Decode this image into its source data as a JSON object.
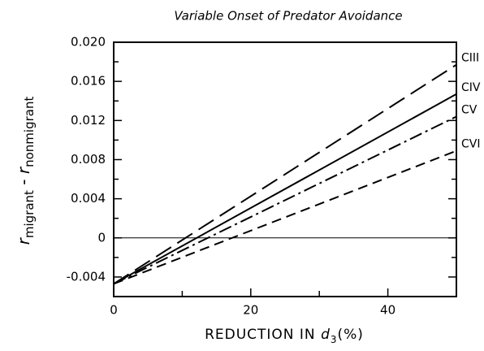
{
  "chart_data": {
    "type": "line",
    "title": "Variable Onset of Predator Avoidance",
    "xlabel": [
      "REDUCTION IN ",
      "d",
      "3",
      "(%)"
    ],
    "ylabel": [
      "r",
      "migrant",
      " - ",
      "r",
      "nonmigrant"
    ],
    "x": [
      0,
      50
    ],
    "series": [
      {
        "name": "CIII",
        "color": "#000000",
        "dash": "22 9",
        "values": [
          -0.0047,
          0.0177
        ]
      },
      {
        "name": "CIV",
        "color": "#000000",
        "dash": "none",
        "values": [
          -0.0047,
          0.0147
        ]
      },
      {
        "name": "CV",
        "color": "#000000",
        "dash": "16 5 3 5",
        "values": [
          -0.0047,
          0.0124
        ]
      },
      {
        "name": "CVI",
        "color": "#000000",
        "dash": "12 7",
        "values": [
          -0.0047,
          0.0089
        ]
      }
    ],
    "xlim": [
      0,
      50
    ],
    "xticks": [
      0,
      20,
      40
    ],
    "xminorticks": [
      10,
      30
    ],
    "ylim": [
      -0.006,
      0.02
    ],
    "yticks": [
      {
        "value": 0.02,
        "label": "0.020"
      },
      0.016,
      0.012,
      0.008,
      0.004,
      0,
      -0.004
    ],
    "yminorticks": [
      0.018,
      0.014,
      0.01,
      0.006,
      0.002,
      -0.002
    ],
    "hline": 0
  }
}
